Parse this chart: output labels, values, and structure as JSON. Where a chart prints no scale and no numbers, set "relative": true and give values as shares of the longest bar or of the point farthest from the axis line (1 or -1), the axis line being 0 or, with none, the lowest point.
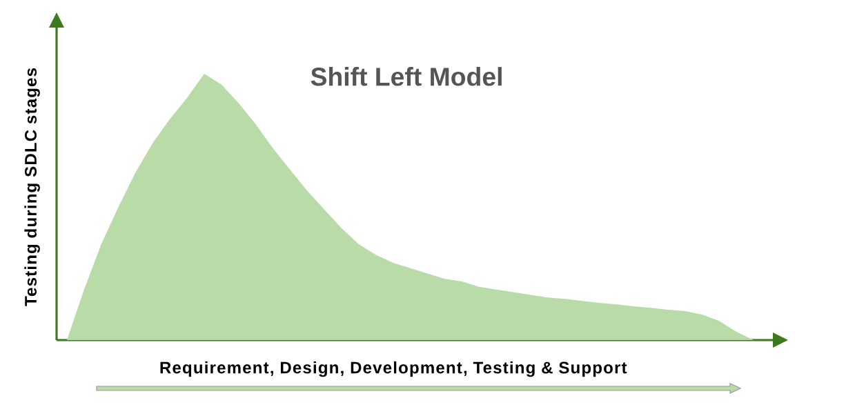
{
  "chart_data": {
    "type": "area",
    "title": "Shift Left Model",
    "xlabel": "Requirement, Design, Development, Testing & Support",
    "ylabel": "Testing during SDLC stages",
    "relative": true,
    "categories": [
      null,
      null,
      null,
      null,
      null,
      null,
      null,
      null,
      null,
      null,
      null,
      null,
      null,
      null,
      null,
      null,
      null,
      null,
      null,
      null,
      null,
      null,
      null,
      null,
      null,
      null,
      null,
      null,
      null,
      null,
      null,
      null,
      null,
      null,
      null,
      null,
      null,
      null,
      null,
      null,
      null
    ],
    "series": [
      {
        "color": "#b8dba8",
        "values": [
          0,
          0.19,
          0.36,
          0.5,
          0.63,
          0.74,
          0.83,
          0.91,
          1,
          0.96,
          0.89,
          0.81,
          0.72,
          0.64,
          0.56,
          0.49,
          0.42,
          0.36,
          0.32,
          0.29,
          0.27,
          0.25,
          0.23,
          0.22,
          0.2,
          0.19,
          0.18,
          0.17,
          0.16,
          0.155,
          0.147,
          0.14,
          0.134,
          0.127,
          0.121,
          0.114,
          0.109,
          0.096,
          0.072,
          0.031,
          0
        ]
      }
    ]
  }
}
